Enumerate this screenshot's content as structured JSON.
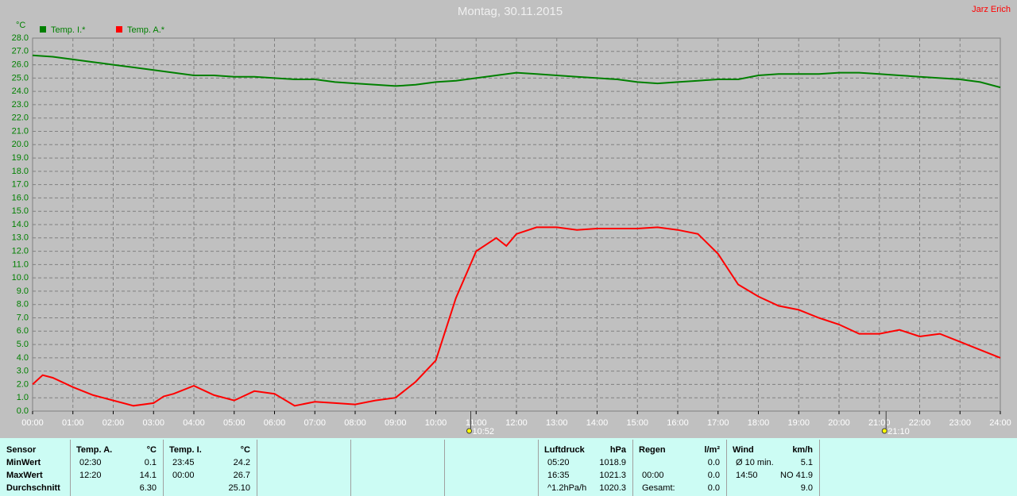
{
  "chart_data": {
    "type": "line",
    "title": "Montag, 30.11.2015",
    "author": "Jarz Erich",
    "y_label": "°C",
    "xlim": [
      0,
      24
    ],
    "ylim": [
      0,
      28
    ],
    "grid": true,
    "legend": "top-left",
    "xticks": [
      {
        "value": 0,
        "label": "00:00"
      },
      {
        "value": 1,
        "label": "01:00"
      },
      {
        "value": 2,
        "label": "02:00"
      },
      {
        "value": 3,
        "label": "03:00"
      },
      {
        "value": 4,
        "label": "04:00"
      },
      {
        "value": 5,
        "label": "05:00"
      },
      {
        "value": 6,
        "label": "06:00"
      },
      {
        "value": 7,
        "label": "07:00"
      },
      {
        "value": 8,
        "label": "08:00"
      },
      {
        "value": 9,
        "label": "09:00"
      },
      {
        "value": 10,
        "label": "10:00"
      },
      {
        "value": 11,
        "label": "11:00"
      },
      {
        "value": 12,
        "label": "12:00"
      },
      {
        "value": 13,
        "label": "13:00"
      },
      {
        "value": 14,
        "label": "14:00"
      },
      {
        "value": 15,
        "label": "15:00"
      },
      {
        "value": 16,
        "label": "16:00"
      },
      {
        "value": 17,
        "label": "17:00"
      },
      {
        "value": 18,
        "label": "18:00"
      },
      {
        "value": 19,
        "label": "19:00"
      },
      {
        "value": 20,
        "label": "20:00"
      },
      {
        "value": 21,
        "label": "21:00"
      },
      {
        "value": 22,
        "label": "22:00"
      },
      {
        "value": 23,
        "label": "23:00"
      },
      {
        "value": 24,
        "label": "24:00"
      }
    ],
    "yticks": [
      {
        "value": 0,
        "label": "0.0"
      },
      {
        "value": 1,
        "label": "1.0"
      },
      {
        "value": 2,
        "label": "2.0"
      },
      {
        "value": 3,
        "label": "3.0"
      },
      {
        "value": 4,
        "label": "4.0"
      },
      {
        "value": 5,
        "label": "5.0"
      },
      {
        "value": 6,
        "label": "6.0"
      },
      {
        "value": 7,
        "label": "7.0"
      },
      {
        "value": 8,
        "label": "8.0"
      },
      {
        "value": 9,
        "label": "9.0"
      },
      {
        "value": 10,
        "label": "10.0"
      },
      {
        "value": 11,
        "label": "11.0"
      },
      {
        "value": 12,
        "label": "12.0"
      },
      {
        "value": 13,
        "label": "13.0"
      },
      {
        "value": 14,
        "label": "14.0"
      },
      {
        "value": 15,
        "label": "15.0"
      },
      {
        "value": 16,
        "label": "16.0"
      },
      {
        "value": 17,
        "label": "17.0"
      },
      {
        "value": 18,
        "label": "18.0"
      },
      {
        "value": 19,
        "label": "19.0"
      },
      {
        "value": 20,
        "label": "20.0"
      },
      {
        "value": 21,
        "label": "21.0"
      },
      {
        "value": 22,
        "label": "22.0"
      },
      {
        "value": 23,
        "label": "23.0"
      },
      {
        "value": 24,
        "label": "24.0"
      },
      {
        "value": 25,
        "label": "25.0"
      },
      {
        "value": 26,
        "label": "26.0"
      },
      {
        "value": 27,
        "label": "27.0"
      },
      {
        "value": 28,
        "label": "28.0"
      }
    ],
    "series": [
      {
        "name": "Temp. I.*",
        "color": "#008000",
        "x": [
          0,
          0.5,
          1,
          1.5,
          2,
          2.5,
          3,
          3.5,
          4,
          4.5,
          5,
          5.5,
          6,
          6.5,
          7,
          7.5,
          8,
          8.5,
          9,
          9.5,
          10,
          10.5,
          11,
          11.5,
          12,
          12.5,
          13,
          13.5,
          14,
          14.5,
          15,
          15.5,
          16,
          16.5,
          17,
          17.5,
          18,
          18.5,
          19,
          19.5,
          20,
          20.5,
          21,
          21.5,
          22,
          22.5,
          23,
          23.5,
          24
        ],
        "values": [
          26.7,
          26.6,
          26.4,
          26.2,
          26.0,
          25.8,
          25.6,
          25.4,
          25.2,
          25.2,
          25.1,
          25.1,
          25.0,
          24.9,
          24.9,
          24.7,
          24.6,
          24.5,
          24.4,
          24.5,
          24.7,
          24.8,
          25.0,
          25.2,
          25.4,
          25.3,
          25.2,
          25.1,
          25.0,
          24.9,
          24.7,
          24.6,
          24.7,
          24.8,
          24.9,
          24.9,
          25.2,
          25.3,
          25.3,
          25.3,
          25.4,
          25.4,
          25.3,
          25.2,
          25.1,
          25.0,
          24.9,
          24.7,
          24.3
        ]
      },
      {
        "name": "Temp. A.*",
        "color": "#ff0000",
        "x": [
          0,
          0.25,
          0.5,
          1,
          1.5,
          2,
          2.5,
          3,
          3.25,
          3.5,
          4,
          4.5,
          5,
          5.5,
          6,
          6.5,
          7,
          7.5,
          8,
          8.5,
          9,
          9.5,
          10,
          10.5,
          11,
          11.5,
          11.75,
          12,
          12.5,
          13,
          13.5,
          14,
          14.5,
          15,
          15.5,
          16,
          16.5,
          17,
          17.5,
          18,
          18.5,
          19,
          19.5,
          20,
          20.5,
          21,
          21.5,
          22,
          22.5,
          23,
          23.5,
          24
        ],
        "values": [
          2.0,
          2.7,
          2.5,
          1.8,
          1.2,
          0.8,
          0.4,
          0.6,
          1.1,
          1.3,
          1.9,
          1.2,
          0.8,
          1.5,
          1.3,
          0.4,
          0.7,
          0.6,
          0.5,
          0.8,
          1.0,
          2.2,
          3.8,
          8.5,
          12.0,
          13.0,
          12.4,
          13.3,
          13.8,
          13.8,
          13.6,
          13.7,
          13.7,
          13.7,
          13.8,
          13.6,
          13.3,
          11.8,
          9.5,
          8.6,
          7.9,
          7.6,
          7.0,
          6.5,
          5.8,
          5.8,
          6.1,
          5.6,
          5.8,
          5.2,
          4.6,
          4.0
        ]
      }
    ],
    "annotations": [
      {
        "x": 10.867,
        "label": "10:52"
      },
      {
        "x": 21.167,
        "label": "21:10"
      }
    ]
  },
  "table": {
    "groups": [
      {
        "header": [
          "Sensor"
        ],
        "rows": [
          [
            "MinWert"
          ],
          [
            "MaxWert"
          ],
          [
            "Durchschnitt"
          ]
        ]
      },
      {
        "header": [
          "Temp. A.",
          "°C"
        ],
        "rows": [
          [
            "02:30",
            "0.1"
          ],
          [
            "12:20",
            "14.1"
          ],
          [
            null,
            "6.30"
          ]
        ]
      },
      {
        "header": [
          "Temp. I.",
          "°C"
        ],
        "rows": [
          [
            "23:45",
            "24.2"
          ],
          [
            "00:00",
            "26.7"
          ],
          [
            null,
            "25.10"
          ]
        ]
      },
      {
        "header": [
          "Luftdruck",
          "hPa"
        ],
        "rows": [
          [
            "05:20",
            "1018.9"
          ],
          [
            "16:35",
            "1021.3"
          ],
          [
            "^1.2hPa/h",
            "1020.3"
          ]
        ]
      },
      {
        "header": [
          "Regen",
          "l/m²"
        ],
        "rows": [
          [
            null,
            "0.0"
          ],
          [
            "00:00",
            "0.0"
          ],
          [
            "Gesamt:",
            "0.0"
          ]
        ]
      },
      {
        "header": [
          "Wind",
          "km/h"
        ],
        "rows": [
          [
            "Ø 10 min.",
            "5.1"
          ],
          [
            "14:50",
            "NO 41.9"
          ],
          [
            null,
            "9.0"
          ]
        ]
      }
    ]
  }
}
